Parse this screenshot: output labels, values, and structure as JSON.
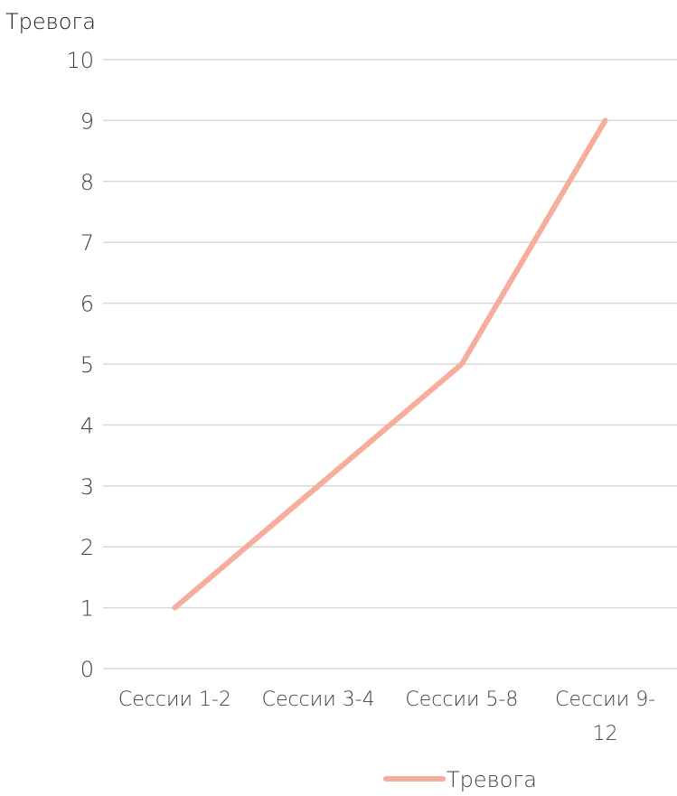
{
  "chart_data": {
    "type": "line",
    "title": "Тревога",
    "categories": [
      "Сессии 1-2",
      "Сессии 3-4",
      "Сессии 5-8",
      "Сессии 9-12"
    ],
    "series": [
      {
        "name": "Тревога",
        "values": [
          1,
          3,
          5,
          9
        ],
        "color": "#f7ad9c"
      }
    ],
    "ylim": [
      0,
      10
    ],
    "yticks": [
      "0",
      "1",
      "2",
      "3",
      "4",
      "5",
      "6",
      "7",
      "8",
      "9",
      "10"
    ],
    "grid": true,
    "legend": "bottom"
  }
}
